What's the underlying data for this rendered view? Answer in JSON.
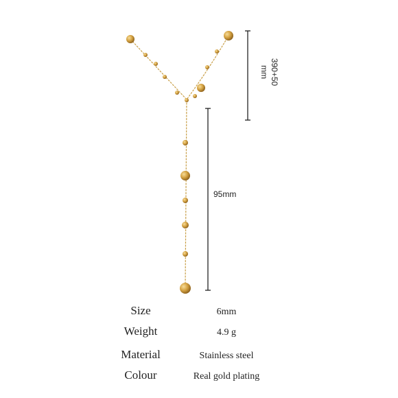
{
  "dimensions": {
    "chain_length": "390+50",
    "chain_unit": "mm",
    "drop_length": "95mm"
  },
  "specs": [
    {
      "label": "Size",
      "value": "6mm"
    },
    {
      "label": "Weight",
      "value": "4.9 g"
    },
    {
      "label": "Material",
      "value": "Stainless steel"
    },
    {
      "label": "Colour",
      "value": "Real gold plating"
    }
  ]
}
